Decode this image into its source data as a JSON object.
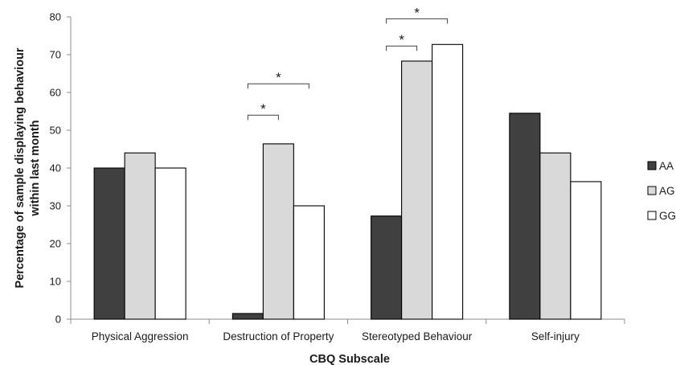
{
  "chart_data": {
    "type": "bar",
    "xlabel": "CBQ Subscale",
    "ylabel_lines": [
      "Percentage of sample displaying behaviour",
      "within last month"
    ],
    "categories": [
      "Physical Aggression",
      "Destruction of Property",
      "Stereotyped Behaviour",
      "Self-injury"
    ],
    "series": [
      {
        "name": "AA",
        "values": [
          40,
          1.5,
          27.3,
          54.5
        ],
        "color": "#404040"
      },
      {
        "name": "AG",
        "values": [
          44,
          46.4,
          68.3,
          44
        ],
        "color": "#d9d9d9"
      },
      {
        "name": "GG",
        "values": [
          40,
          30,
          72.7,
          36.4
        ],
        "color": "#ffffff"
      }
    ],
    "ylim": [
      0,
      80
    ],
    "yticks": [
      0,
      10,
      20,
      30,
      40,
      50,
      60,
      70,
      80
    ],
    "grid": false,
    "legend_position": "right",
    "significance": [
      {
        "category": 1,
        "from_series": 0,
        "to_series": 1,
        "label": "*",
        "level": 54
      },
      {
        "category": 1,
        "from_series": 0,
        "to_series": 2,
        "label": "*",
        "level": 62.3
      },
      {
        "category": 2,
        "from_series": 0,
        "to_series": 1,
        "label": "*",
        "level": 72.3
      },
      {
        "category": 2,
        "from_series": 0,
        "to_series": 2,
        "label": "*",
        "level": 79.5
      }
    ]
  }
}
